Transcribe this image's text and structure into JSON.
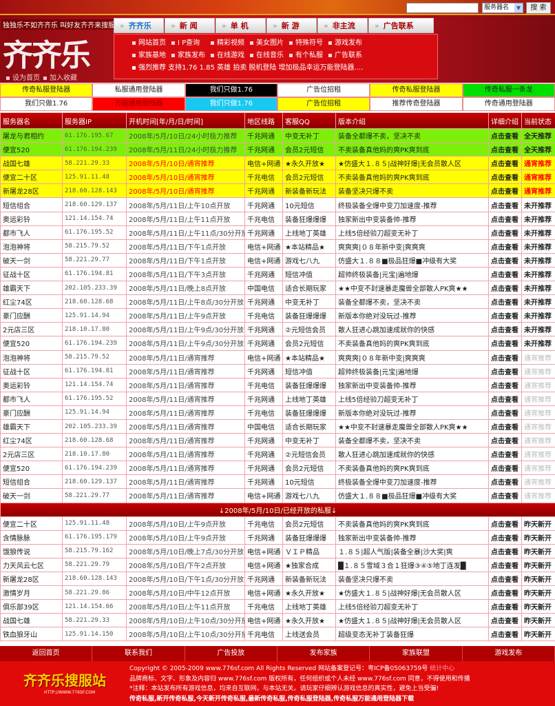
{
  "header": {
    "search_placeholder": "",
    "search_select": "服务器名",
    "search_button": "搜 索",
    "slogan": "独独乐不如齐齐乐 叫好友齐齐来搜服",
    "logo": "齐齐乐",
    "set_home": "▪ 设为首页",
    "add_fav": "▪ 加入收藏",
    "tabs": [
      "齐齐乐",
      "新 闻",
      "单 机",
      "新 游",
      "非主流",
      "广告联系"
    ],
    "subnav_row1": [
      "网站首页",
      "I P查询",
      "精彩视频",
      "美女图片",
      "特殊符号",
      "游戏发布"
    ],
    "subnav_row2": [
      "家族基地",
      "家族发布",
      "在线游戏",
      "在线音乐",
      "有个私服",
      "广告联系"
    ],
    "subnav_row3": "▪ 强烈推荐 支持1.76 1.85 英雄 拍卖 脱机登陆 增加极品幸运万能登陆器...."
  },
  "ads": [
    [
      {
        "t": "传奇私服登陆器",
        "bg": "#ffff00",
        "c": "#222"
      },
      {
        "t": "私服通用登陆器",
        "bg": "#ffffff",
        "c": "#222"
      },
      {
        "t": "我们只做1.76",
        "bg": "#000000",
        "c": "#ffffff"
      },
      {
        "t": "广告位招租",
        "bg": "#ffffff",
        "c": "#222"
      },
      {
        "t": "传奇私服登陆器",
        "bg": "#ffff00",
        "c": "#222"
      },
      {
        "t": "传奇私服一条龙",
        "bg": "#00e000",
        "c": "#222"
      }
    ],
    [
      {
        "t": "我们只做1.76",
        "bg": "#ffffff",
        "c": "#222"
      },
      {
        "t": "万能通用登陆器",
        "bg": "#ff0000",
        "c": "#880000"
      },
      {
        "t": "我们只做1.76",
        "bg": "#18c8f0",
        "c": "#ffffff"
      },
      {
        "t": "广告位招租",
        "bg": "#ffff00",
        "c": "#222"
      },
      {
        "t": "推荐传奇登陆器",
        "bg": "#ffffff",
        "c": "#222"
      },
      {
        "t": "传奇通用登陆器",
        "bg": "#ffffff",
        "c": "#222"
      }
    ]
  ],
  "table": {
    "headers": [
      "服务器名",
      "服务器IP",
      "开机时间[年/月/日/时间]",
      "地区线路",
      "客服QQ",
      "版本介绍",
      "详细介绍",
      "当前状态"
    ],
    "rows": [
      {
        "style": "green",
        "cells": [
          "屠龙与君相约",
          "61.176.195.67",
          "2008年/5月/10日/24小时极力推荐",
          "千兆网通",
          "中变无补丁",
          "装备全都爆不卖，坚决不卖",
          "点击查看",
          "全天推荐"
        ]
      },
      {
        "style": "green",
        "cells": [
          "便宜520",
          "61.176.194.239",
          "2008年/5月/11日/24小时极力推荐",
          "千兆网通",
          "会员2元短信",
          "不卖装备真他妈的爽PK爽到底",
          "点击查看",
          "全天推荐"
        ]
      },
      {
        "style": "yellow",
        "cells": [
          "战国七雄",
          "58.221.29.33",
          "2008年/5月/10日/通宵推荐",
          "电信+网通",
          "★永久开放★",
          "★仿盛大１.８５|战神好爆|无会员散人区",
          "点击查看",
          "通宵推荐"
        ]
      },
      {
        "style": "yellow",
        "cells": [
          "便宜二十区",
          "125.91.11.48",
          "2008年/5月/10日/通宵推荐",
          "千兆电信",
          "会员2元短信",
          "不卖装备真他妈的爽PK爽到底",
          "点击查看",
          "通宵推荐"
        ]
      },
      {
        "style": "yellow",
        "cells": [
          "新屠龙28区",
          "218.60.128.143",
          "2008年/5月/10日/通宵推荐",
          "千兆网通",
          "新装备新玩法",
          "装备坚决只爆不卖",
          "点击查看",
          "通宵推荐"
        ]
      },
      {
        "style": "white",
        "cells": [
          "短信组合",
          "218.60.129.137",
          "2008年/5月/11日/上午10点开放",
          "千兆网通",
          "10元短信",
          "终极装备全爆中变刀加速度-推荐",
          "点击查看",
          "未开推荐"
        ]
      },
      {
        "style": "white",
        "cells": [
          "奥运彩铃",
          "121.14.154.74",
          "2008年/5月/11日/上午11点开放",
          "千兆电信",
          "装备狂爆爆爆",
          "独家新出中变装备帅-推荐",
          "点击查看",
          "未开推荐"
        ]
      },
      {
        "style": "white",
        "cells": [
          "都市飞人",
          "61.176.195.52",
          "2008年/5月/11日/上午11点/30分开放",
          "千兆网通",
          "上线地丁英雄",
          "上线5倍经验刀超变无补丁",
          "点击查看",
          "未开推荐"
        ]
      },
      {
        "style": "white",
        "cells": [
          "泡泡神将",
          "58.215.79.52",
          "2008年/5月/11日/下午1点开放",
          "电信+网通",
          "★本站精品★",
          "爽爽爽|０８年新中变|爽爽爽",
          "点击查看",
          "未开推荐"
        ]
      },
      {
        "style": "white",
        "cells": [
          "破天一剑",
          "58.221.29.77",
          "2008年/5月/11日/下午1点开放",
          "电信+网通",
          "游戏七八九",
          "仿盛大１.８８■极品狂爆■冲级有大奖",
          "点击查看",
          "未开推荐"
        ]
      },
      {
        "style": "white",
        "cells": [
          "征战十区",
          "61.176.194.81",
          "2008年/5月/11日/下午3点开放",
          "千兆网通",
          "短信冲值",
          "超帅终极装备|元宝|遍地爆",
          "点击查看",
          "未开推荐"
        ]
      },
      {
        "style": "white",
        "cells": [
          "雄霸天下",
          "202.105.233.39",
          "2008年/5月/11日/晚上8点开放",
          "中国电信",
          "适合长期玩家",
          "★★中变不封速暴走魔兽全部散人PK爽★★",
          "点击查看",
          "未开推荐"
        ]
      },
      {
        "style": "white",
        "cells": [
          "红尘74区",
          "218.60.128.68",
          "2008年/5月/11日/上午8点/30分开放",
          "千兆网通",
          "中变无补丁",
          "装备全都爆不卖，坚决不卖",
          "点击查看",
          "未开推荐"
        ]
      },
      {
        "style": "white",
        "cells": [
          "豪门应酬",
          "125.91.14.94",
          "2008年/5月/11日/上午9点开放",
          "千兆电信",
          "装备狂爆爆爆",
          "新版本你绝对没玩过-推荐",
          "点击查看",
          "未开推荐"
        ]
      },
      {
        "style": "white",
        "cells": [
          "2元店三区",
          "218.10.17.80",
          "2008年/5月/11日/上午9点/30分开放",
          "千兆网通",
          "②元短信会员",
          "散人狂进心跳加速成就你的快感",
          "点击查看",
          "未开推荐"
        ]
      },
      {
        "style": "white",
        "cells": [
          "便宜520",
          "61.176.194.239",
          "2008年/5月/11日/上午9点/30分开放",
          "千兆网通",
          "会员2元短信",
          "不卖装备真他妈的爽PK爽到底",
          "点击查看",
          "未开推荐"
        ]
      },
      {
        "style": "grey",
        "cells": [
          "泡泡神将",
          "58.215.79.52",
          "2008年/5月/11日/通宵推荐",
          "电信+网通",
          "★本站精品★",
          "爽爽爽|０８年新中变|爽爽爽",
          "点击查看",
          "通宵推荐"
        ]
      },
      {
        "style": "grey",
        "cells": [
          "征战十区",
          "61.176.194.81",
          "2008年/5月/11日/通宵推荐",
          "千兆网通",
          "短信冲值",
          "超帅终极装备|元宝|遍地爆",
          "点击查看",
          "通宵推荐"
        ]
      },
      {
        "style": "grey",
        "cells": [
          "奥运彩铃",
          "121.14.154.74",
          "2008年/5月/11日/通宵推荐",
          "千兆电信",
          "装备狂爆爆爆",
          "独家新出中变装备帅-推荐",
          "点击查看",
          "通宵推荐"
        ]
      },
      {
        "style": "grey",
        "cells": [
          "都市飞人",
          "61.176.195.52",
          "2008年/5月/11日/通宵推荐",
          "千兆网通",
          "上线地丁英雄",
          "上线5倍经验刀超变无补丁",
          "点击查看",
          "通宵推荐"
        ]
      },
      {
        "style": "grey",
        "cells": [
          "豪门应酬",
          "125.91.14.94",
          "2008年/5月/11日/通宵推荐",
          "千兆电信",
          "装备狂爆爆爆",
          "新版本你绝对没玩过-推荐",
          "点击查看",
          "通宵推荐"
        ]
      },
      {
        "style": "grey",
        "cells": [
          "雄霸天下",
          "202.105.233.39",
          "2008年/5月/11日/通宵推荐",
          "中国电信",
          "适合长期玩家",
          "★★中变不封速暴走魔兽全部散人PK爽★★",
          "点击查看",
          "通宵推荐"
        ]
      },
      {
        "style": "grey",
        "cells": [
          "红尘74区",
          "218.60.128.68",
          "2008年/5月/11日/通宵推荐",
          "千兆网通",
          "中变无补丁",
          "装备全都爆不卖，坚决不卖",
          "点击查看",
          "通宵推荐"
        ]
      },
      {
        "style": "grey",
        "cells": [
          "2元店三区",
          "218.10.17.80",
          "2008年/5月/11日/通宵推荐",
          "千兆网通",
          "②元短信会员",
          "散人狂进心跳加速成就你的快感",
          "点击查看",
          "通宵推荐"
        ]
      },
      {
        "style": "grey",
        "cells": [
          "便宜520",
          "61.176.194.239",
          "2008年/5月/11日/通宵推荐",
          "千兆网通",
          "会员2元短信",
          "不卖装备真他妈的爽PK爽到底",
          "点击查看",
          "通宵推荐"
        ]
      },
      {
        "style": "grey",
        "cells": [
          "短信组合",
          "218.60.129.137",
          "2008年/5月/11日/通宵推荐",
          "千兆网通",
          "10元短信",
          "终极装备全爆中变刀加速度-推荐",
          "点击查看",
          "通宵推荐"
        ]
      },
      {
        "style": "grey",
        "cells": [
          "破天一剑",
          "58.221.29.77",
          "2008年/5月/11日/通宵推荐",
          "电信+网通",
          "游戏七八九",
          "仿盛大１.８８■极品狂爆■冲级有大奖",
          "点击查看",
          "通宵推荐"
        ]
      }
    ],
    "separator": "↓2008年/5月/10日/已经开放的私服↓",
    "rows2": [
      {
        "style": "white",
        "cells": [
          "便宜二十区",
          "125.91.11.48",
          "2008年/5月/10日/上午9点开放",
          "千兆电信",
          "会员2元短信",
          "不卖装备真他妈的爽PK爽到底",
          "点击查看",
          "昨天新开"
        ]
      },
      {
        "style": "white",
        "cells": [
          "含情脉脉",
          "61.176.195.179",
          "2008年/5月/10日/上午9点开放",
          "千兆网通",
          "装备狂爆爆爆",
          "独家新出中变装备帅-推荐",
          "点击查看",
          "昨天新开"
        ]
      },
      {
        "style": "white",
        "cells": [
          "饿狼传说",
          "58.215.79.162",
          "2008年/5月/10日/晚上7点/30分开放",
          "电信+网通",
          "ＶＩＰ精品",
          "１.８５|超人气版|装备全暴|沙大奖|爽",
          "点击查看",
          "昨天新开"
        ]
      },
      {
        "style": "white",
        "cells": [
          "力天风云七区",
          "58.221.29.79",
          "2008年/5月/10日/下午2点开放",
          "电信+网通",
          "★独家合成",
          "█１.８５雪域３合１狂爆③④⑤地丁连发█",
          "点击查看",
          "昨天新开"
        ]
      },
      {
        "style": "white",
        "cells": [
          "新屠龙28区",
          "218.60.128.143",
          "2008年/5月/10日/下午1点/30分开放",
          "千兆网通",
          "新装备新玩法",
          "装备坚决只爆不卖",
          "点击查看",
          "昨天新开"
        ]
      },
      {
        "style": "white",
        "cells": [
          "激情岁月",
          "58.221.29.86",
          "2008年/5月/10日/中午12点开放",
          "电信+网通",
          "★永久开放★",
          "★仿盛大１.８５|战神好爆|无会员散人区",
          "点击查看",
          "昨天新开"
        ]
      },
      {
        "style": "white",
        "cells": [
          "俱乐部39区",
          "121.14.154.66",
          "2008年/5月/10日/上午11点开放",
          "千兆电信",
          "上线地丁英雄",
          "上线5倍经验刀超变无补丁",
          "点击查看",
          "昨天新开"
        ]
      },
      {
        "style": "white",
        "cells": [
          "战国七雄",
          "58.221.29.33",
          "2008年/5月/10日/上午10点/30分开放",
          "电信+网通",
          "★永久开放★",
          "★仿盛大１.８５|战神好爆|无会员散人区",
          "点击查看",
          "昨天新开"
        ]
      },
      {
        "style": "white",
        "cells": [
          "铁血狼牙山",
          "125.91.14.150",
          "2008年/5月/10日/上午10点/30分开放",
          "千兆电信",
          "上线送会员",
          "超级变态无补丁装备狂爆",
          "点击查看",
          "昨天新开"
        ]
      }
    ]
  },
  "footer": {
    "nav": [
      "返回首页",
      "联系我们",
      "广告投放",
      "发布家族",
      "家族联盟",
      "游戏发布"
    ],
    "logo": "齐齐乐搜服站",
    "logo_url": "HTTP://WWW.776SF.COM",
    "copyright": "Copyright © 2005-2009 www.776sf.com All Rights Reserved 网站备案登记号：粤ICP备05063759号",
    "stats_link": "统计中心",
    "line2": "品牌商标、文字、形象及内容归 www.776sf.com 版权所有，任何组织或个人未经 www.776sf.com 同意，不得使用和传播",
    "line3": "*注释：本站发布所有游戏信息，均来自互联网，与本站无关。请玩家仔细辨认游戏信息的真实性，避免上当受骗!",
    "line4": "传奇私服,新开传奇私服,今天新开传奇私服,最新传奇私服,传奇私服登陆器,传奇私服万能通用登陆器下载"
  }
}
